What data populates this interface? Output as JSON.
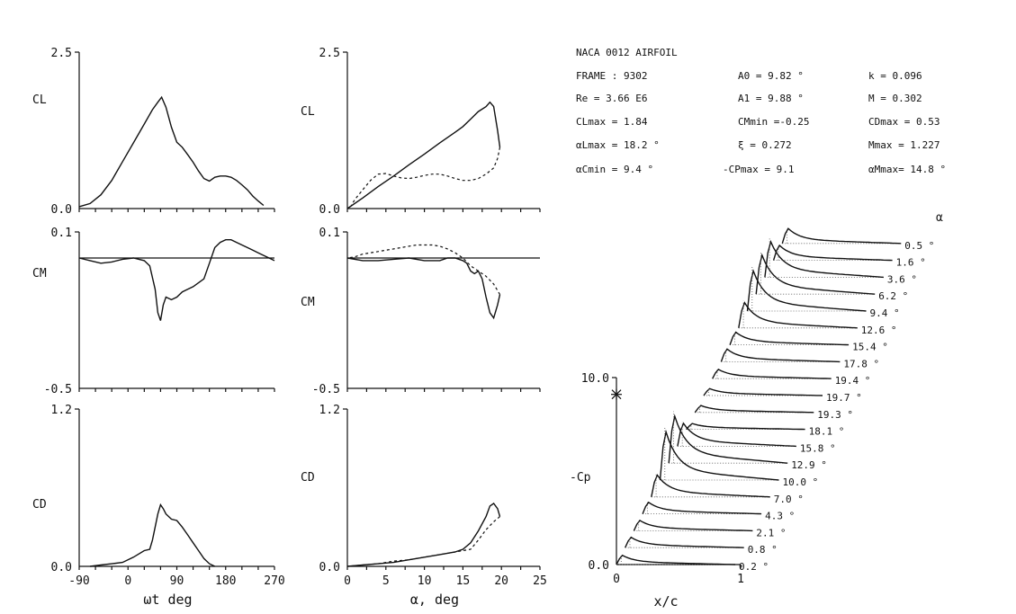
{
  "header": {
    "title": "NACA 0012 AIRFOIL",
    "rows": [
      [
        "FRAME : 9302",
        "A0 = 9.82 °",
        "k = 0.096"
      ],
      [
        "Re = 3.66 E6",
        "A1 = 9.88 °",
        "M = 0.302"
      ],
      [
        "CLmax = 1.84",
        "CMmin =-0.25",
        "CDmax = 0.53"
      ],
      [
        "αLmax = 18.2 °",
        "ξ = 0.272",
        "Mmax = 1.227"
      ],
      [
        "αCmin = 9.4 °",
        "-CPmax = 9.1",
        "αMmax= 14.8 °"
      ]
    ]
  },
  "chart_data": [
    {
      "id": "cl-vs-wt",
      "type": "line",
      "ylabel": "CL",
      "xlabel": "",
      "xlim": [
        -90,
        270
      ],
      "ylim": [
        0.0,
        2.5
      ],
      "y_ticks": [
        "0.0",
        "2.5"
      ],
      "x_ticks": [],
      "series": [
        {
          "x": [
            -90,
            -70,
            -50,
            -30,
            -10,
            10,
            30,
            45,
            55,
            62,
            70,
            80,
            90,
            100,
            110,
            120,
            130,
            140,
            150,
            160,
            170,
            180,
            190,
            200,
            210,
            220,
            230,
            240,
            250
          ],
          "y": [
            0.03,
            0.08,
            0.22,
            0.45,
            0.75,
            1.05,
            1.35,
            1.58,
            1.7,
            1.78,
            1.62,
            1.3,
            1.06,
            0.98,
            0.86,
            0.74,
            0.6,
            0.48,
            0.44,
            0.5,
            0.52,
            0.52,
            0.5,
            0.45,
            0.38,
            0.3,
            0.2,
            0.12,
            0.05
          ]
        }
      ]
    },
    {
      "id": "cl-vs-alpha",
      "type": "line",
      "ylabel": "CL",
      "xlabel": "",
      "xlim": [
        0,
        25
      ],
      "ylim": [
        0.0,
        2.5
      ],
      "y_ticks": [
        "0.0",
        "2.5"
      ],
      "x_ticks": [],
      "series": [
        {
          "style": "solid",
          "x": [
            0,
            2,
            4,
            6,
            8,
            10,
            12,
            14,
            15,
            16,
            17,
            18,
            18.5,
            19,
            19.5,
            19.8
          ],
          "y": [
            0.0,
            0.17,
            0.35,
            0.52,
            0.7,
            0.87,
            1.05,
            1.22,
            1.31,
            1.43,
            1.55,
            1.63,
            1.7,
            1.63,
            1.25,
            0.98
          ]
        },
        {
          "style": "dashed",
          "x": [
            19.8,
            19.5,
            19,
            18,
            17,
            16,
            15,
            14,
            13,
            12,
            11,
            10,
            9,
            8,
            7,
            6,
            5,
            4,
            3,
            2,
            1,
            0.5
          ],
          "y": [
            0.98,
            0.8,
            0.65,
            0.55,
            0.48,
            0.45,
            0.45,
            0.48,
            0.52,
            0.55,
            0.55,
            0.53,
            0.5,
            0.48,
            0.49,
            0.52,
            0.56,
            0.55,
            0.45,
            0.3,
            0.15,
            0.05
          ]
        }
      ]
    },
    {
      "id": "cm-vs-wt",
      "type": "line",
      "ylabel": "CM",
      "xlabel": "",
      "xlim": [
        -90,
        270
      ],
      "ylim": [
        -0.5,
        0.1
      ],
      "y_ticks": [
        "-0.5",
        "0.1"
      ],
      "x_ticks": [],
      "series": [
        {
          "x": [
            -90,
            -70,
            -50,
            -30,
            -10,
            10,
            30,
            40,
            50,
            55,
            60,
            65,
            70,
            80,
            90,
            100,
            110,
            120,
            140,
            150,
            160,
            170,
            180,
            190,
            200,
            210,
            220,
            230,
            240,
            250,
            260,
            270
          ],
          "y": [
            0.0,
            -0.01,
            -0.02,
            -0.015,
            -0.005,
            0.0,
            -0.01,
            -0.03,
            -0.12,
            -0.21,
            -0.24,
            -0.18,
            -0.15,
            -0.16,
            -0.15,
            -0.13,
            -0.12,
            -0.11,
            -0.08,
            -0.02,
            0.04,
            0.06,
            0.07,
            0.07,
            0.06,
            0.05,
            0.04,
            0.03,
            0.02,
            0.01,
            0.0,
            -0.01
          ]
        }
      ]
    },
    {
      "id": "cm-vs-alpha",
      "type": "line",
      "ylabel": "CM",
      "xlabel": "",
      "xlim": [
        0,
        25
      ],
      "ylim": [
        -0.5,
        0.1
      ],
      "y_ticks": [
        "-0.5",
        "0.1"
      ],
      "x_ticks": [],
      "series": [
        {
          "style": "solid",
          "x": [
            0,
            2,
            4,
            6,
            8,
            10,
            12,
            13,
            14,
            15,
            15.5,
            16,
            16.5,
            17,
            17.5,
            18,
            18.5,
            19,
            19.5,
            19.8
          ],
          "y": [
            0.0,
            -0.01,
            -0.01,
            -0.005,
            0.0,
            -0.01,
            -0.01,
            0.0,
            0.0,
            -0.01,
            -0.02,
            -0.05,
            -0.06,
            -0.05,
            -0.08,
            -0.15,
            -0.21,
            -0.23,
            -0.18,
            -0.14
          ]
        },
        {
          "style": "dashed",
          "x": [
            19.8,
            19,
            18,
            17,
            16,
            15,
            14,
            13,
            12,
            11,
            10,
            9,
            8,
            7,
            6,
            5,
            4,
            3,
            2,
            1,
            0
          ],
          "y": [
            -0.14,
            -0.1,
            -0.07,
            -0.05,
            -0.03,
            0.0,
            0.02,
            0.035,
            0.045,
            0.05,
            0.05,
            0.05,
            0.045,
            0.04,
            0.035,
            0.03,
            0.025,
            0.02,
            0.015,
            0.005,
            0.0
          ]
        }
      ]
    },
    {
      "id": "cd-vs-wt",
      "type": "line",
      "ylabel": "CD",
      "xlabel": "ωt deg",
      "xlim": [
        -90,
        270
      ],
      "ylim": [
        0.0,
        1.2
      ],
      "y_ticks": [
        "0.0",
        "1.2"
      ],
      "x_ticks": [
        -90,
        0,
        90,
        180,
        270
      ],
      "x_tick_labels": [
        "-90",
        "0",
        "90",
        "180",
        "270"
      ],
      "series": [
        {
          "x": [
            -70,
            -50,
            -30,
            -10,
            10,
            30,
            40,
            45,
            50,
            55,
            60,
            65,
            70,
            80,
            90,
            100,
            110,
            120,
            130,
            140,
            150,
            160
          ],
          "y": [
            0.0,
            0.01,
            0.02,
            0.03,
            0.07,
            0.12,
            0.13,
            0.2,
            0.3,
            0.4,
            0.47,
            0.44,
            0.4,
            0.36,
            0.35,
            0.3,
            0.24,
            0.18,
            0.12,
            0.06,
            0.02,
            0.0
          ]
        }
      ]
    },
    {
      "id": "cd-vs-alpha",
      "type": "line",
      "ylabel": "CD",
      "xlabel": "α, deg",
      "xlim": [
        0,
        25
      ],
      "ylim": [
        0.0,
        1.2
      ],
      "y_ticks": [
        "0.0",
        "1.2"
      ],
      "x_ticks": [
        0,
        5,
        10,
        15,
        20,
        25
      ],
      "x_tick_labels": [
        "0",
        "5",
        "10",
        "15",
        "20",
        "25"
      ],
      "series": [
        {
          "style": "solid",
          "x": [
            0,
            2,
            4,
            6,
            8,
            10,
            12,
            14,
            15,
            16,
            17,
            18,
            18.5,
            19,
            19.5,
            19.8
          ],
          "y": [
            0.0,
            0.01,
            0.02,
            0.03,
            0.05,
            0.07,
            0.09,
            0.11,
            0.13,
            0.18,
            0.27,
            0.38,
            0.46,
            0.48,
            0.44,
            0.38
          ]
        },
        {
          "style": "dashed",
          "x": [
            19.8,
            19,
            18,
            17,
            16,
            15,
            14,
            12,
            10,
            8,
            6,
            4,
            2,
            0
          ],
          "y": [
            0.38,
            0.34,
            0.28,
            0.2,
            0.13,
            0.12,
            0.11,
            0.09,
            0.07,
            0.05,
            0.04,
            0.02,
            0.01,
            0.0
          ]
        }
      ]
    },
    {
      "id": "cp-waterfall",
      "type": "line",
      "ylabel": "-Cp",
      "xlabel": "x/c",
      "xlim": [
        0,
        1
      ],
      "ylim": [
        0.0,
        10.0
      ],
      "y_ticks": [
        "0.0",
        "10.0"
      ],
      "x_ticks": [
        0,
        1
      ],
      "x_tick_labels": [
        "0",
        "1"
      ],
      "legend_title": "α",
      "marker_cp": 9.1,
      "alphas": [
        "0.5 °",
        "1.6 °",
        "3.6 °",
        "6.2 °",
        "9.4 °",
        "12.6 °",
        "15.4 °",
        "17.8 °",
        "19.4 °",
        "19.7 °",
        "19.3 °",
        "18.1 °",
        "15.8 °",
        "12.9 °",
        "10.0 °",
        "7.0 °",
        "4.3 °",
        "2.1 °",
        "0.8 °",
        "0.2 °"
      ],
      "peak_cp": [
        1.2,
        1.2,
        3.0,
        3.3,
        3.4,
        2.1,
        1.0,
        1.0,
        0.7,
        0.5,
        0.5,
        0.4,
        1.9,
        4.0,
        4.1,
        1.8,
        0.9,
        0.8,
        0.8,
        0.7
      ]
    }
  ]
}
